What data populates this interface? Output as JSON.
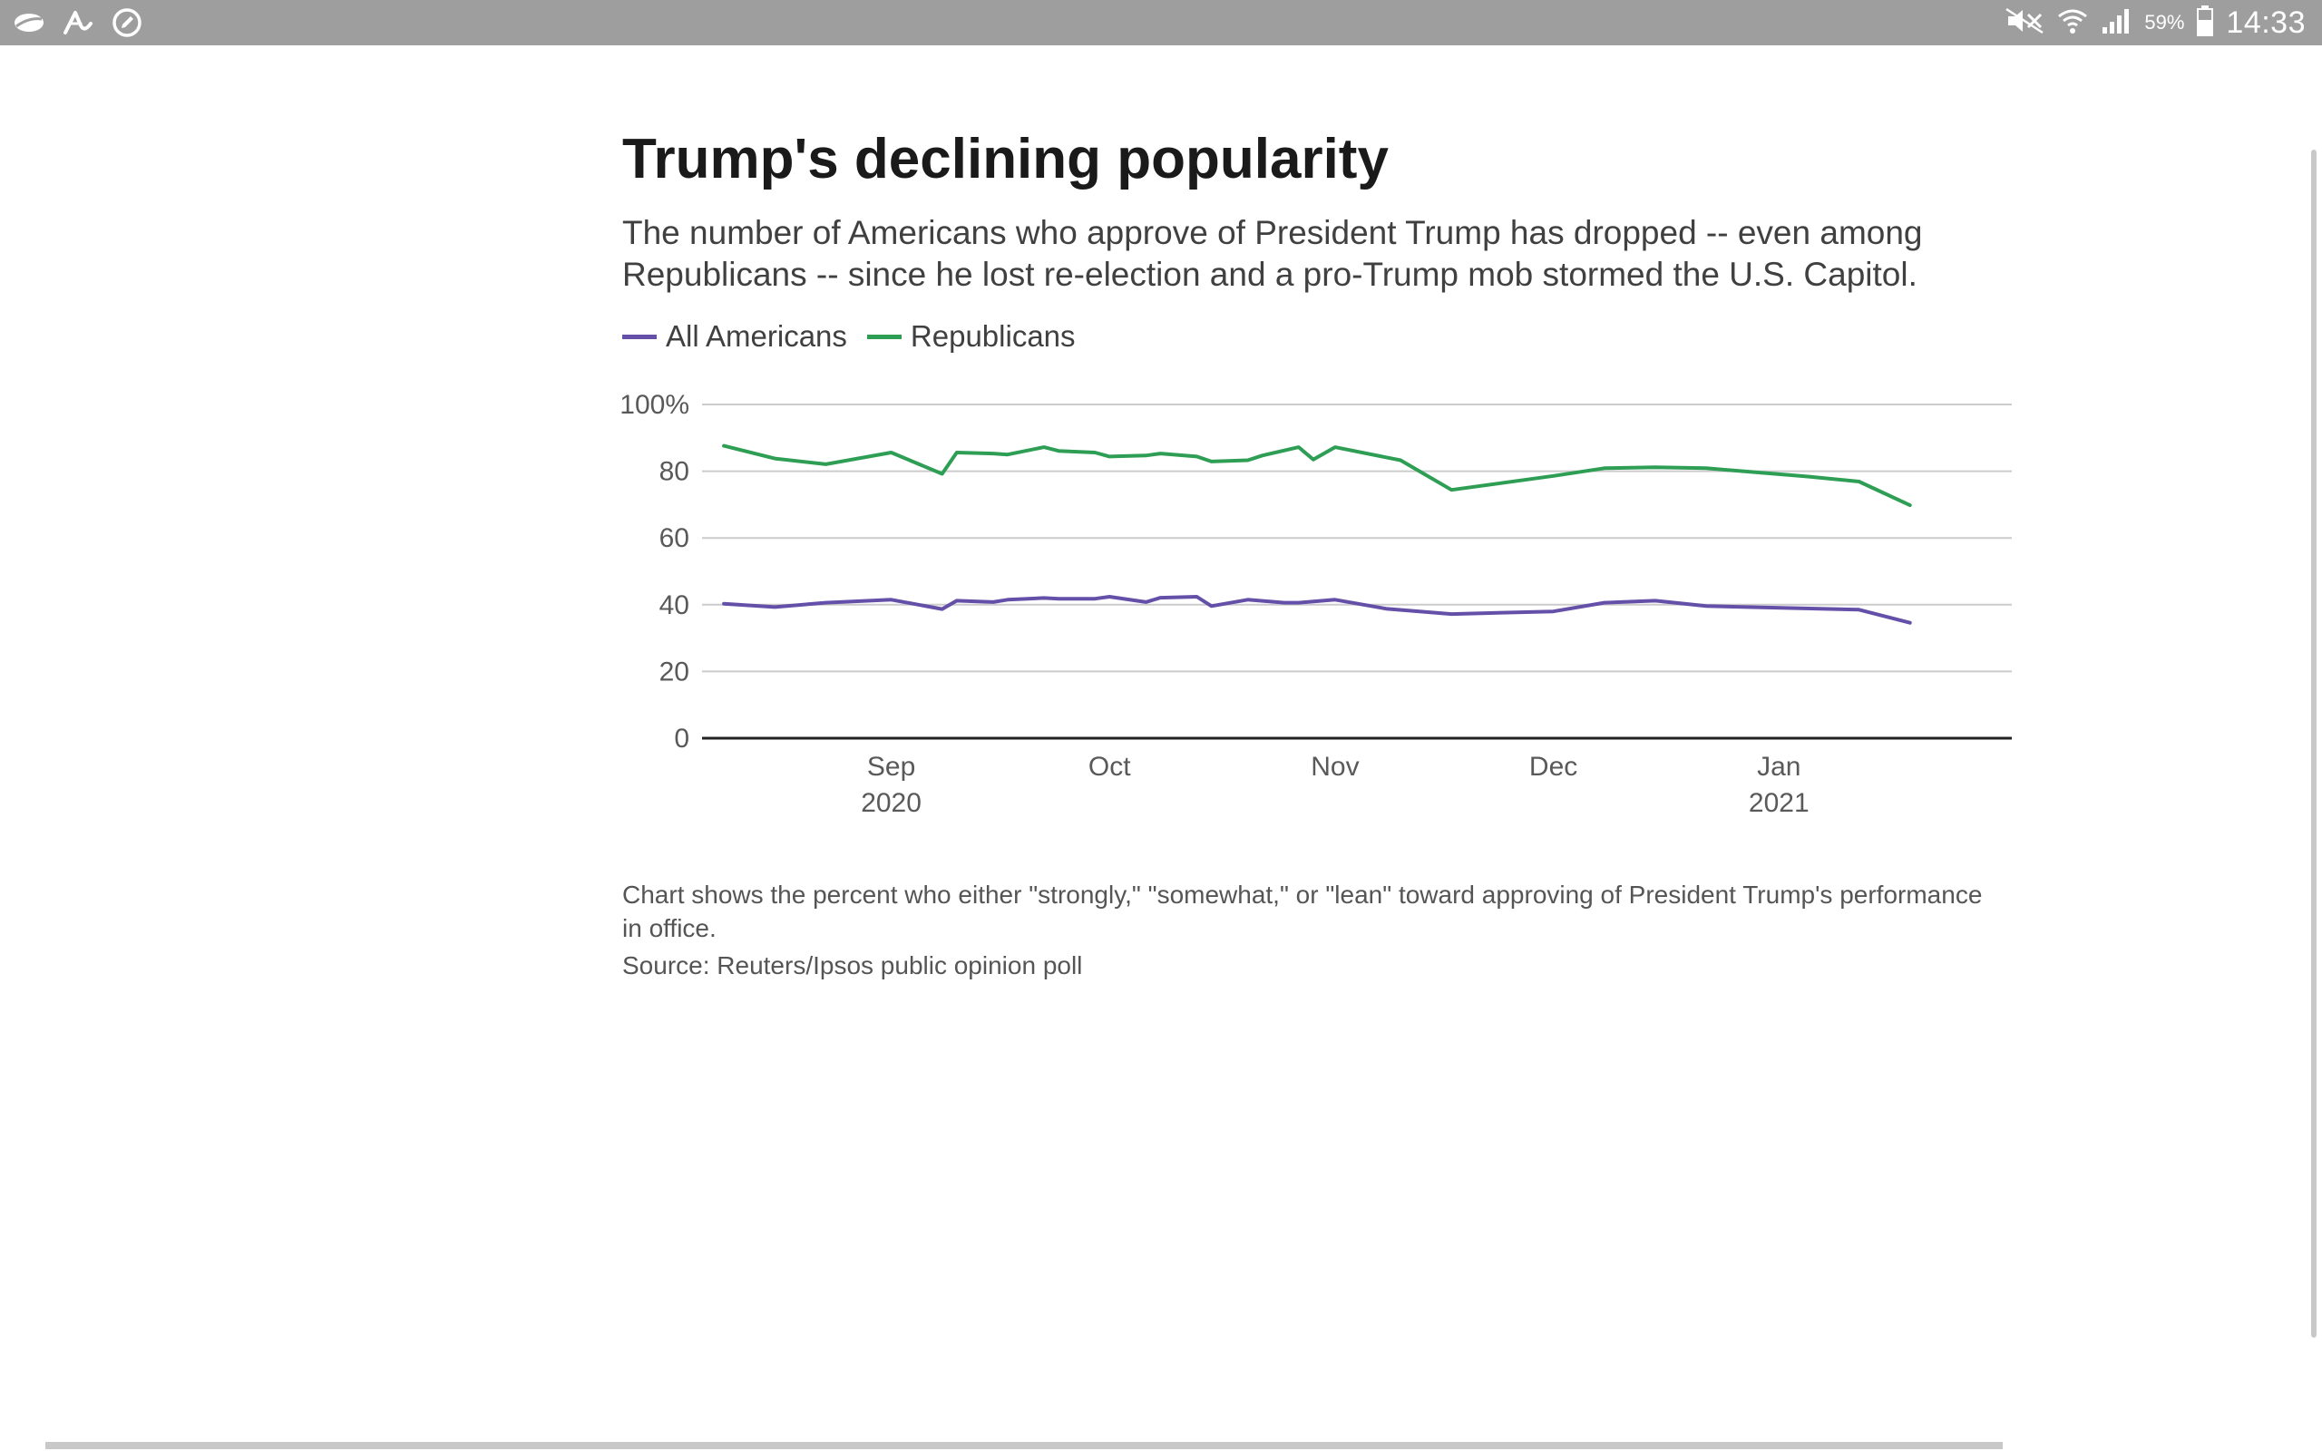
{
  "status_bar": {
    "left_icons": [
      "cloud-icon",
      "signature-icon",
      "edit-icon"
    ],
    "right_icons": [
      "mute-icon",
      "wifi-icon",
      "signal-icon"
    ],
    "battery": "59%",
    "time": "14:33"
  },
  "chart_data": {
    "type": "line",
    "title": "Trump's declining popularity",
    "subtitle": "The number of Americans who approve of President Trump has dropped -- even among Republicans -- since he lost re-election and a pro-Trump mob stormed the U.S. Capitol.",
    "xlabel": "",
    "ylabel": "",
    "xlim": [
      -26,
      154
    ],
    "ylim": [
      0,
      100
    ],
    "y_ticks": [
      0,
      20,
      40,
      60,
      80,
      100
    ],
    "y_tick_labels": [
      "0",
      "20",
      "40",
      "60",
      "80",
      "100%"
    ],
    "x_ticks": [
      {
        "x": 0,
        "label": "Sep",
        "sub": "2020"
      },
      {
        "x": 30,
        "label": "Oct",
        "sub": ""
      },
      {
        "x": 61,
        "label": "Nov",
        "sub": ""
      },
      {
        "x": 91,
        "label": "Dec",
        "sub": ""
      },
      {
        "x": 122,
        "label": "Jan",
        "sub": "2021"
      }
    ],
    "x_unit": "days since Sep 1, 2020",
    "grid": true,
    "legend": "top-left",
    "series": [
      {
        "name": "All Americans",
        "color": "#6450a8",
        "points": [
          [
            -23,
            40.3
          ],
          [
            -16,
            39.3
          ],
          [
            -9,
            40.6
          ],
          [
            0,
            41.5
          ],
          [
            7,
            38.7
          ],
          [
            9,
            41.2
          ],
          [
            14,
            40.8
          ],
          [
            16,
            41.5
          ],
          [
            21,
            42.0
          ],
          [
            23,
            41.8
          ],
          [
            28,
            41.8
          ],
          [
            30,
            42.4
          ],
          [
            35,
            40.8
          ],
          [
            37,
            42.1
          ],
          [
            42,
            42.4
          ],
          [
            44,
            39.6
          ],
          [
            49,
            41.5
          ],
          [
            54,
            40.6
          ],
          [
            56,
            40.6
          ],
          [
            61,
            41.5
          ],
          [
            68,
            38.8
          ],
          [
            77,
            37.2
          ],
          [
            91,
            38.0
          ],
          [
            98,
            40.6
          ],
          [
            105,
            41.2
          ],
          [
            112,
            39.6
          ],
          [
            133,
            38.5
          ],
          [
            140,
            34.6
          ]
        ]
      },
      {
        "name": "Republicans",
        "color": "#2e9e55",
        "points": [
          [
            -23,
            87.6
          ],
          [
            -16,
            83.8
          ],
          [
            -9,
            82.1
          ],
          [
            0,
            85.6
          ],
          [
            7,
            79.2
          ],
          [
            9,
            85.6
          ],
          [
            14,
            85.3
          ],
          [
            16,
            85.0
          ],
          [
            21,
            87.2
          ],
          [
            23,
            86.1
          ],
          [
            28,
            85.6
          ],
          [
            30,
            84.4
          ],
          [
            35,
            84.7
          ],
          [
            37,
            85.3
          ],
          [
            42,
            84.4
          ],
          [
            44,
            82.9
          ],
          [
            49,
            83.3
          ],
          [
            51,
            84.7
          ],
          [
            56,
            87.2
          ],
          [
            58,
            83.5
          ],
          [
            61,
            87.2
          ],
          [
            70,
            83.3
          ],
          [
            77,
            74.4
          ],
          [
            91,
            78.6
          ],
          [
            98,
            80.9
          ],
          [
            105,
            81.2
          ],
          [
            112,
            80.9
          ],
          [
            126,
            78.4
          ],
          [
            133,
            76.9
          ],
          [
            140,
            69.8
          ]
        ]
      }
    ],
    "note": "Chart shows the percent who either \"strongly,\" \"somewhat,\" or \"lean\" toward approving of President Trump's performance in office.",
    "source": "Source: Reuters/Ipsos public opinion poll"
  }
}
